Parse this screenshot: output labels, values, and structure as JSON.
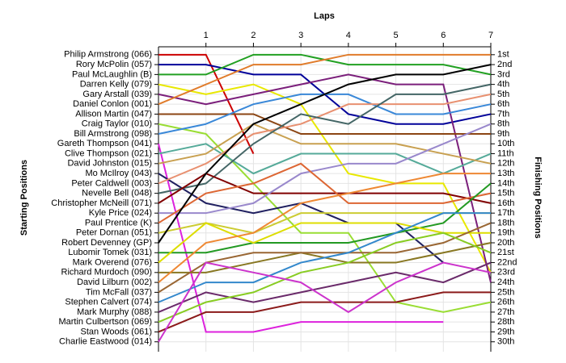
{
  "chart_data": {
    "type": "line",
    "title": "Laps",
    "y_label": "Starting Positions",
    "y2_label": "Finishing Positions",
    "x": [
      0,
      1,
      2,
      3,
      4,
      5,
      6,
      7
    ],
    "xlim": [
      0,
      7
    ],
    "xticks": [
      1,
      2,
      3,
      4,
      5,
      6,
      7
    ],
    "ylim": [
      0.2,
      31
    ],
    "invert_y": true,
    "grid": true,
    "y2ticks": [
      {
        "value": 1,
        "label": "1st"
      },
      {
        "value": 2,
        "label": "2nd"
      },
      {
        "value": 3,
        "label": "3rd"
      },
      {
        "value": 4,
        "label": "4th"
      },
      {
        "value": 5,
        "label": "5th"
      },
      {
        "value": 6,
        "label": "6th"
      },
      {
        "value": 7,
        "label": "7th"
      },
      {
        "value": 8,
        "label": "8th"
      },
      {
        "value": 9,
        "label": "9th"
      },
      {
        "value": 10,
        "label": "10th"
      },
      {
        "value": 11,
        "label": "11th"
      },
      {
        "value": 12,
        "label": "12th"
      },
      {
        "value": 13,
        "label": "13th"
      },
      {
        "value": 14,
        "label": "14th"
      },
      {
        "value": 15,
        "label": "15th"
      },
      {
        "value": 16,
        "label": "16th"
      },
      {
        "value": 17,
        "label": "17th"
      },
      {
        "value": 18,
        "label": "18th"
      },
      {
        "value": 19,
        "label": "19th"
      },
      {
        "value": 20,
        "label": "20th"
      },
      {
        "value": 21,
        "label": "21st"
      },
      {
        "value": 22,
        "label": "22nd"
      },
      {
        "value": 23,
        "label": "23rd"
      },
      {
        "value": 24,
        "label": "24th"
      },
      {
        "value": 25,
        "label": "25th"
      },
      {
        "value": 26,
        "label": "26th"
      },
      {
        "value": 27,
        "label": "27th"
      },
      {
        "value": 28,
        "label": "28th"
      },
      {
        "value": 29,
        "label": "29th"
      },
      {
        "value": 30,
        "label": "30th"
      }
    ],
    "series": [
      {
        "name": "Philip Armstrong (066)",
        "color": "#cc0000",
        "values": [
          1,
          1,
          11,
          null,
          null,
          null,
          null,
          null
        ]
      },
      {
        "name": "Rory McPolin (057)",
        "color": "#000099",
        "values": [
          2,
          2,
          3,
          3,
          7,
          8,
          8,
          7
        ]
      },
      {
        "name": "Paul McLaughlin (B)",
        "color": "#22a022",
        "values": [
          3,
          3,
          1,
          1,
          2,
          2,
          2,
          3
        ]
      },
      {
        "name": "Darren Kelly (079)",
        "color": "#e8e800",
        "values": [
          4,
          5,
          4,
          6,
          13,
          14,
          14,
          23
        ]
      },
      {
        "name": "Gary Arstall (039)",
        "color": "#7b1f7b",
        "values": [
          5,
          6,
          5,
          4,
          3,
          4,
          4,
          24
        ]
      },
      {
        "name": "Daniel Conlon (001)",
        "color": "#e07b2a",
        "values": [
          6,
          4,
          2,
          2,
          1,
          1,
          1,
          1
        ]
      },
      {
        "name": "Allison Martin (047)",
        "color": "#8b4513",
        "values": [
          7,
          7,
          7,
          9,
          9,
          9,
          9,
          9
        ]
      },
      {
        "name": "Craig Taylor (010)",
        "color": "#99dd33",
        "values": [
          8,
          9,
          14,
          19,
          19,
          26,
          27,
          26
        ]
      },
      {
        "name": "Bill Armstrong (098)",
        "color": "#3a88d8",
        "values": [
          9,
          8,
          6,
          5,
          5,
          7,
          7,
          6
        ]
      },
      {
        "name": "Gareth Thompson (041)",
        "color": "#dd22dd",
        "values": [
          10,
          29,
          29,
          28,
          28,
          28,
          28,
          null
        ]
      },
      {
        "name": "Clive Thompson (021)",
        "color": "#55aa99",
        "values": [
          11,
          10,
          13,
          11,
          11,
          11,
          13,
          11
        ]
      },
      {
        "name": "David Johnston (015)",
        "color": "#c8a050",
        "values": [
          12,
          11,
          8,
          10,
          10,
          10,
          11,
          12
        ]
      },
      {
        "name": "Mo McIlroy (043)",
        "color": "#202060",
        "values": [
          13,
          16,
          17,
          16,
          18,
          18,
          22,
          null
        ]
      },
      {
        "name": "Peter Caldwell (003)",
        "color": "#e89070",
        "values": [
          14,
          12,
          9,
          8,
          6,
          6,
          6,
          5
        ]
      },
      {
        "name": "Nevelle Bell (048)",
        "color": "#446666",
        "values": [
          15,
          14,
          10,
          7,
          8,
          5,
          5,
          4
        ]
      },
      {
        "name": "Christopher McNeill (071)",
        "color": "#800000",
        "values": [
          16,
          13,
          15,
          15,
          15,
          15,
          15,
          16
        ]
      },
      {
        "name": "Kyle Price (024)",
        "color": "#9988cc",
        "values": [
          17,
          17,
          16,
          13,
          12,
          12,
          10,
          8
        ]
      },
      {
        "name": "Paul Prentice (K)",
        "color": "#dd6633",
        "values": [
          18,
          15,
          14,
          12,
          16,
          16,
          16,
          15
        ]
      },
      {
        "name": "Peter Dornan (051)",
        "color": "#cccc33",
        "values": [
          19,
          18,
          19,
          17,
          17,
          17,
          17,
          17
        ]
      },
      {
        "name": "Robert Devenney (GP)",
        "color": "#000000",
        "values": [
          20,
          13,
          8,
          6,
          4,
          3,
          3,
          2
        ]
      },
      {
        "name": "Lubomir Tomek (031)",
        "color": "#229922",
        "values": [
          21,
          21,
          20,
          20,
          20,
          19,
          18,
          14
        ]
      },
      {
        "name": "Mark Overend (076)",
        "color": "#dddd00",
        "values": [
          22,
          18,
          20,
          18,
          18,
          18,
          19,
          19
        ]
      },
      {
        "name": "Richard Murdoch (090)",
        "color": "#887722",
        "values": [
          23,
          23,
          22,
          21,
          22,
          22,
          21,
          20
        ]
      },
      {
        "name": "David Lilburn (002)",
        "color": "#ee8833",
        "values": [
          24,
          20,
          19,
          16,
          15,
          14,
          13,
          13
        ]
      },
      {
        "name": "Tim McFall (037)",
        "color": "#996633",
        "values": [
          25,
          22,
          21,
          21,
          21,
          21,
          20,
          18
        ]
      },
      {
        "name": "Stephen Calvert (074)",
        "color": "#3388cc",
        "values": [
          26,
          24,
          24,
          22,
          21,
          19,
          17,
          17
        ]
      },
      {
        "name": "Mark Murphy (088)",
        "color": "#6a2a6a",
        "values": [
          27,
          25,
          26,
          25,
          24,
          23,
          24,
          22
        ]
      },
      {
        "name": "Martin Culbertson (069)",
        "color": "#88cc22",
        "values": [
          28,
          26,
          25,
          23,
          22,
          20,
          19,
          21
        ]
      },
      {
        "name": "Stan Woods (061)",
        "color": "#8b1a1a",
        "values": [
          29,
          27,
          27,
          26,
          26,
          26,
          25,
          25
        ]
      },
      {
        "name": "Charlie Eastwood (014)",
        "color": "#cc33cc",
        "values": [
          30,
          22,
          23,
          24,
          27,
          24,
          22,
          23
        ]
      }
    ]
  }
}
